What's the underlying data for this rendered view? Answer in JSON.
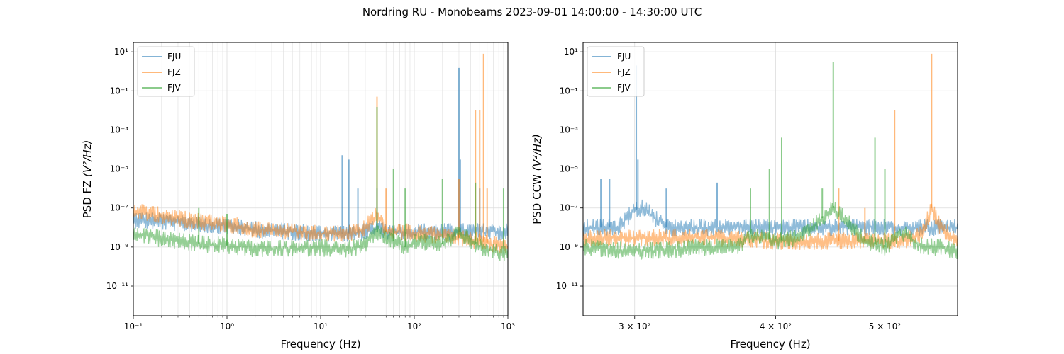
{
  "figure": {
    "suptitle": "Nordring RU - Monobeams 2023-09-01  14:00:00 - 14:30:00 UTC"
  },
  "colors": {
    "FJU": "#1f77b4",
    "FJZ": "#ff7f0e",
    "FJV": "#2ca02c"
  },
  "chart_data": [
    {
      "type": "line",
      "title": "",
      "xlabel": "Frequency (Hz)",
      "ylabel_main": "PSD FZ",
      "ylabel_unit": "(V²/Hz)",
      "x_scale": "log",
      "y_scale": "log",
      "xlim": [
        0.1,
        1000
      ],
      "ylim": [
        3e-13,
        30
      ],
      "x_ticks": [
        {
          "value": 0.1,
          "label": "10⁻¹"
        },
        {
          "value": 1,
          "label": "10⁰"
        },
        {
          "value": 10,
          "label": "10¹"
        },
        {
          "value": 100,
          "label": "10²"
        },
        {
          "value": 1000,
          "label": "10³"
        }
      ],
      "y_ticks": [
        {
          "value": 1e-11,
          "label": "10⁻¹¹"
        },
        {
          "value": 1e-09,
          "label": "10⁻⁹"
        },
        {
          "value": 1e-07,
          "label": "10⁻⁷"
        },
        {
          "value": 1e-05,
          "label": "10⁻⁵"
        },
        {
          "value": 0.001,
          "label": "10⁻³"
        },
        {
          "value": 0.1,
          "label": "10⁻¹"
        },
        {
          "value": 10,
          "label": "10¹"
        }
      ],
      "grid": true,
      "minor_grid": true,
      "legend": "upper left",
      "series": [
        {
          "name": "FJU",
          "x": [
            0.1,
            0.2,
            0.5,
            1,
            2,
            5,
            10,
            20,
            30,
            40,
            50,
            80,
            100,
            200,
            300,
            500,
            1000
          ],
          "y": [
            2.5e-08,
            2e-08,
            1.5e-08,
            1.2e-08,
            8e-09,
            6e-09,
            5e-09,
            5e-09,
            6e-09,
            1e-08,
            6e-09,
            6e-09,
            6e-09,
            6e-09,
            6e-09,
            6e-09,
            6e-09
          ],
          "peaks": [
            [
              17,
              5e-05
            ],
            [
              20,
              3e-05
            ],
            [
              25,
              1e-06
            ],
            [
              40,
              1e-06
            ],
            [
              300,
              1.5
            ],
            [
              310,
              3e-05
            ],
            [
              500,
              1e-06
            ]
          ]
        },
        {
          "name": "FJZ",
          "x": [
            0.1,
            0.15,
            0.2,
            0.5,
            1,
            2,
            5,
            10,
            20,
            30,
            40,
            50,
            80,
            100,
            200,
            300,
            500,
            1000
          ],
          "y": [
            8e-08,
            5e-08,
            4e-08,
            2e-08,
            1.5e-08,
            8e-09,
            6e-09,
            5e-09,
            5e-09,
            1e-08,
            5e-08,
            6e-09,
            6e-09,
            5e-09,
            4e-09,
            3e-09,
            2e-09,
            1e-09
          ],
          "peaks": [
            [
              40,
              0.05
            ],
            [
              50,
              1e-06
            ],
            [
              300,
              3e-06
            ],
            [
              450,
              0.01
            ],
            [
              500,
              0.01
            ],
            [
              550,
              8
            ],
            [
              600,
              1e-06
            ]
          ]
        },
        {
          "name": "FJV",
          "x": [
            0.1,
            0.2,
            0.5,
            1,
            2,
            5,
            10,
            20,
            30,
            40,
            50,
            80,
            100,
            200,
            300,
            500,
            1000
          ],
          "y": [
            6e-09,
            2.5e-09,
            1.5e-09,
            1.2e-09,
            8e-10,
            9e-10,
            9e-10,
            8e-10,
            1.2e-09,
            6e-09,
            3e-09,
            1e-09,
            2e-09,
            1.5e-09,
            5e-09,
            1e-09,
            4e-10
          ],
          "peaks": [
            [
              0.5,
              1e-07
            ],
            [
              1,
              5e-08
            ],
            [
              40,
              0.015
            ],
            [
              60,
              1e-05
            ],
            [
              80,
              1e-06
            ],
            [
              200,
              3e-06
            ],
            [
              450,
              2e-06
            ],
            [
              900,
              1e-06
            ]
          ]
        }
      ]
    },
    {
      "type": "line",
      "title": "",
      "xlabel": "Frequency (Hz)",
      "ylabel_main": "PSD CCW",
      "ylabel_unit": "(V²/Hz)",
      "x_scale": "log",
      "y_scale": "log",
      "xlim": [
        270,
        580
      ],
      "ylim": [
        3e-13,
        30
      ],
      "x_ticks": [
        {
          "value": 300,
          "label": "3 × 10²"
        },
        {
          "value": 400,
          "label": "4 × 10²"
        },
        {
          "value": 500,
          "label": "5 × 10²"
        }
      ],
      "y_ticks": [
        {
          "value": 1e-11,
          "label": "10⁻¹¹"
        },
        {
          "value": 1e-09,
          "label": "10⁻⁹"
        },
        {
          "value": 1e-07,
          "label": "10⁻⁷"
        },
        {
          "value": 1e-05,
          "label": "10⁻⁵"
        },
        {
          "value": 0.001,
          "label": "10⁻³"
        },
        {
          "value": 0.1,
          "label": "10⁻¹"
        },
        {
          "value": 10,
          "label": "10¹"
        }
      ],
      "grid": true,
      "minor_grid": false,
      "legend": "upper left",
      "series": [
        {
          "name": "FJU",
          "x": [
            270,
            290,
            300,
            305,
            310,
            320,
            350,
            400,
            450,
            500,
            550,
            580
          ],
          "y": [
            1e-08,
            1e-08,
            8e-08,
            1e-07,
            5e-08,
            1e-08,
            1e-08,
            1e-08,
            1e-08,
            1e-08,
            1e-08,
            1e-08
          ],
          "peaks": [
            [
              280,
              3e-06
            ],
            [
              285,
              3e-06
            ],
            [
              301,
              2
            ],
            [
              302,
              3e-05
            ],
            [
              320,
              1e-06
            ],
            [
              355,
              2e-06
            ]
          ]
        },
        {
          "name": "FJZ",
          "x": [
            270,
            300,
            350,
            400,
            450,
            500,
            520,
            540,
            550,
            560,
            580
          ],
          "y": [
            3e-09,
            3e-09,
            3e-09,
            2e-09,
            2e-09,
            2e-09,
            2e-09,
            5e-09,
            1e-07,
            1e-08,
            2e-09
          ],
          "peaks": [
            [
              510,
              0.01
            ],
            [
              550,
              8
            ],
            [
              455,
              1e-06
            ],
            [
              480,
              1e-07
            ]
          ]
        },
        {
          "name": "FJV",
          "x": [
            270,
            300,
            330,
            350,
            370,
            380,
            400,
            420,
            440,
            450,
            460,
            480,
            500,
            520,
            540,
            560,
            580
          ],
          "y": [
            1e-09,
            6e-10,
            8e-10,
            1e-09,
            1e-09,
            5e-09,
            2e-09,
            3e-09,
            3e-08,
            1e-07,
            3e-08,
            2e-09,
            1e-09,
            5e-09,
            1e-09,
            1e-09,
            6e-10
          ],
          "peaks": [
            [
              405,
              0.0004
            ],
            [
              450,
              3
            ],
            [
              490,
              0.0004
            ],
            [
              395,
              1e-05
            ],
            [
              500,
              1e-05
            ],
            [
              380,
              1e-06
            ],
            [
              440,
              1e-06
            ]
          ]
        }
      ]
    }
  ]
}
